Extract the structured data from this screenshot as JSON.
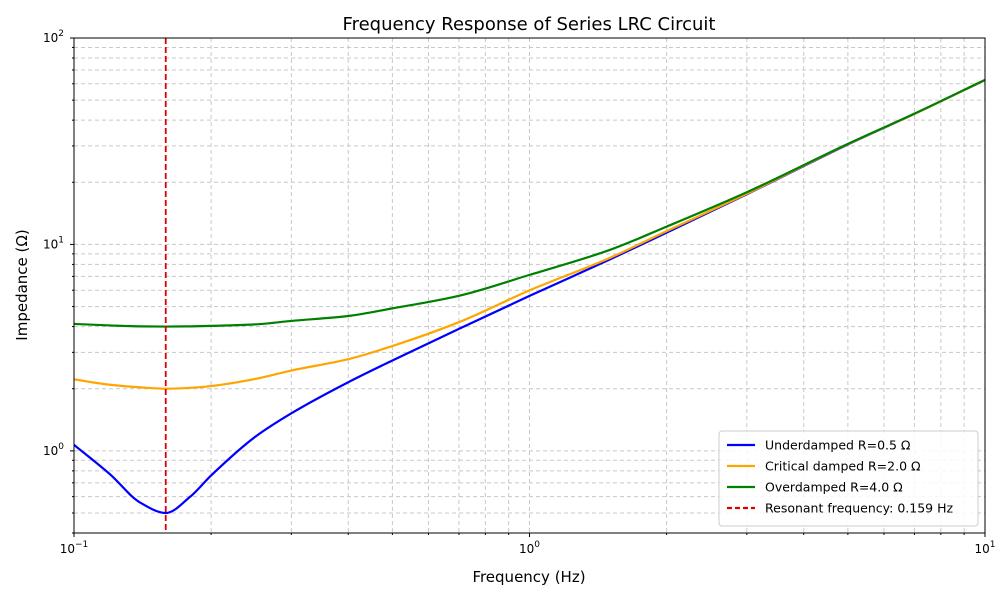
{
  "chart_data": {
    "type": "line",
    "title": "Frequency Response of Series LRC Circuit",
    "xlabel": "Frequency (Hz)",
    "ylabel": "Impedance (Ω)",
    "xscale": "log",
    "yscale": "log",
    "xlim": [
      0.1,
      10
    ],
    "ylim": [
      0.4,
      100
    ],
    "grid": true,
    "legend_position": "lower-right",
    "x_ticks": [
      {
        "value": 0.1,
        "base": "10",
        "exp": "−1"
      },
      {
        "value": 1,
        "base": "10",
        "exp": "0"
      },
      {
        "value": 10,
        "base": "10",
        "exp": "1"
      }
    ],
    "y_ticks": [
      {
        "value": 1,
        "base": "10",
        "exp": "0"
      },
      {
        "value": 10,
        "base": "10",
        "exp": "1"
      },
      {
        "value": 100,
        "base": "10",
        "exp": "2"
      }
    ],
    "series": [
      {
        "name": "Underdamped R=0.5 Ω",
        "color": "#0000ff",
        "x": [
          0.1,
          0.12,
          0.14,
          0.159,
          0.18,
          0.2,
          0.25,
          0.3,
          0.4,
          0.5,
          0.7,
          1.0,
          1.5,
          2.0,
          3.0,
          5.0,
          7.0,
          10.0
        ],
        "y": [
          1.07,
          0.77,
          0.56,
          0.5,
          0.6,
          0.76,
          1.17,
          1.52,
          2.15,
          2.74,
          3.9,
          5.63,
          8.45,
          11.4,
          17.5,
          30.5,
          42.9,
          62.6
        ]
      },
      {
        "name": "Critical damped R=2.0 Ω",
        "color": "#ffa500",
        "x": [
          0.1,
          0.12,
          0.14,
          0.159,
          0.18,
          0.2,
          0.25,
          0.3,
          0.4,
          0.5,
          0.7,
          1.0,
          1.5,
          2.0,
          3.0,
          5.0,
          7.0,
          10.0
        ],
        "y": [
          2.22,
          2.09,
          2.03,
          2.0,
          2.02,
          2.06,
          2.23,
          2.45,
          2.78,
          3.22,
          4.2,
          5.99,
          8.6,
          11.6,
          17.6,
          30.6,
          42.9,
          62.6
        ]
      },
      {
        "name": "Overdamped R=4.0 Ω",
        "color": "#008000",
        "x": [
          0.1,
          0.12,
          0.14,
          0.159,
          0.18,
          0.2,
          0.25,
          0.3,
          0.4,
          0.5,
          0.7,
          1.0,
          1.5,
          2.0,
          3.0,
          5.0,
          7.0,
          10.0
        ],
        "y": [
          4.12,
          4.05,
          4.01,
          4.0,
          4.01,
          4.03,
          4.1,
          4.26,
          4.5,
          4.9,
          5.64,
          7.12,
          9.4,
          12.2,
          17.9,
          30.7,
          43.0,
          62.7
        ]
      }
    ],
    "vline": {
      "name": "Resonant frequency: 0.159 Hz",
      "x": 0.159,
      "color": "#dd0000",
      "style": "dashed"
    }
  }
}
